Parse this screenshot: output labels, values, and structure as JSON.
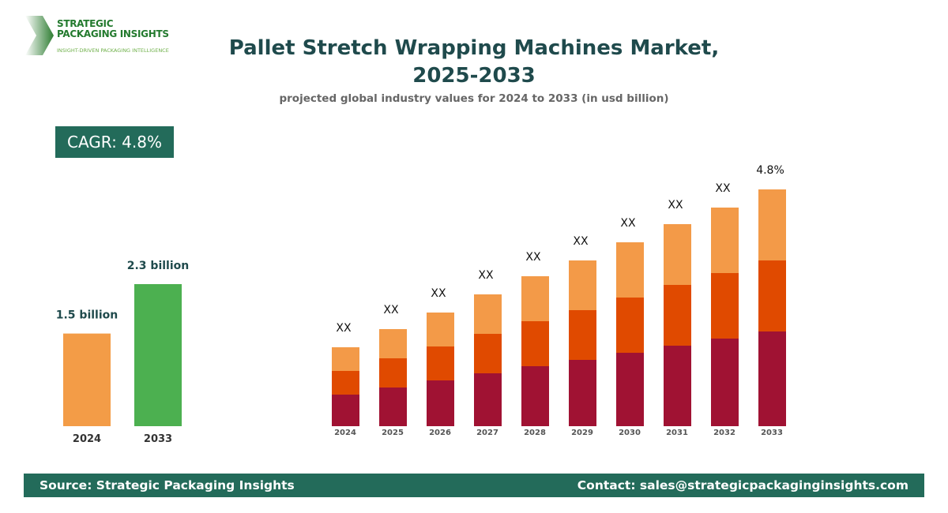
{
  "logo": {
    "name_line1": "STRATEGIC",
    "name_line2": "PACKAGING INSIGHTS",
    "tagline": "INSIGHT-DRIVEN PACKAGING INTELLIGENCE"
  },
  "header": {
    "title_line1": "Pallet Stretch Wrapping Machines Market,",
    "title_line2": "2025-2033",
    "subtitle": "projected global industry values for 2024 to 2033 (in usd billion)"
  },
  "cagr_badge": "CAGR: 4.8%",
  "footer": {
    "source": "Source: Strategic Packaging Insights",
    "contact": "Contact: sales@strategicpackaginginsights.com"
  },
  "chart_data": [
    {
      "type": "bar",
      "categories": [
        "2024",
        "2033"
      ],
      "values": [
        1.5,
        2.3
      ],
      "data_labels": [
        "1.5 billion",
        "2.3 billion"
      ],
      "colors": [
        "#f39c47",
        "#4cb050"
      ]
    },
    {
      "type": "bar",
      "stacked": true,
      "categories": [
        "2024",
        "2025",
        "2026",
        "2027",
        "2028",
        "2029",
        "2030",
        "2031",
        "2032",
        "2033"
      ],
      "series": [
        {
          "color": "#a01233",
          "values": [
            40,
            49,
            58,
            67,
            76,
            84,
            93,
            102,
            111,
            120
          ]
        },
        {
          "color": "#e04a00",
          "values": [
            30,
            37,
            43,
            50,
            57,
            63,
            70,
            77,
            83,
            90
          ]
        },
        {
          "color": "#f39a48",
          "values": [
            30,
            37,
            43,
            50,
            57,
            63,
            70,
            77,
            83,
            90
          ]
        }
      ],
      "data_labels": [
        "XX",
        "XX",
        "XX",
        "XX",
        "XX",
        "XX",
        "XX",
        "XX",
        "XX",
        "4.8%"
      ],
      "axis_shown": false,
      "grid": false
    }
  ]
}
